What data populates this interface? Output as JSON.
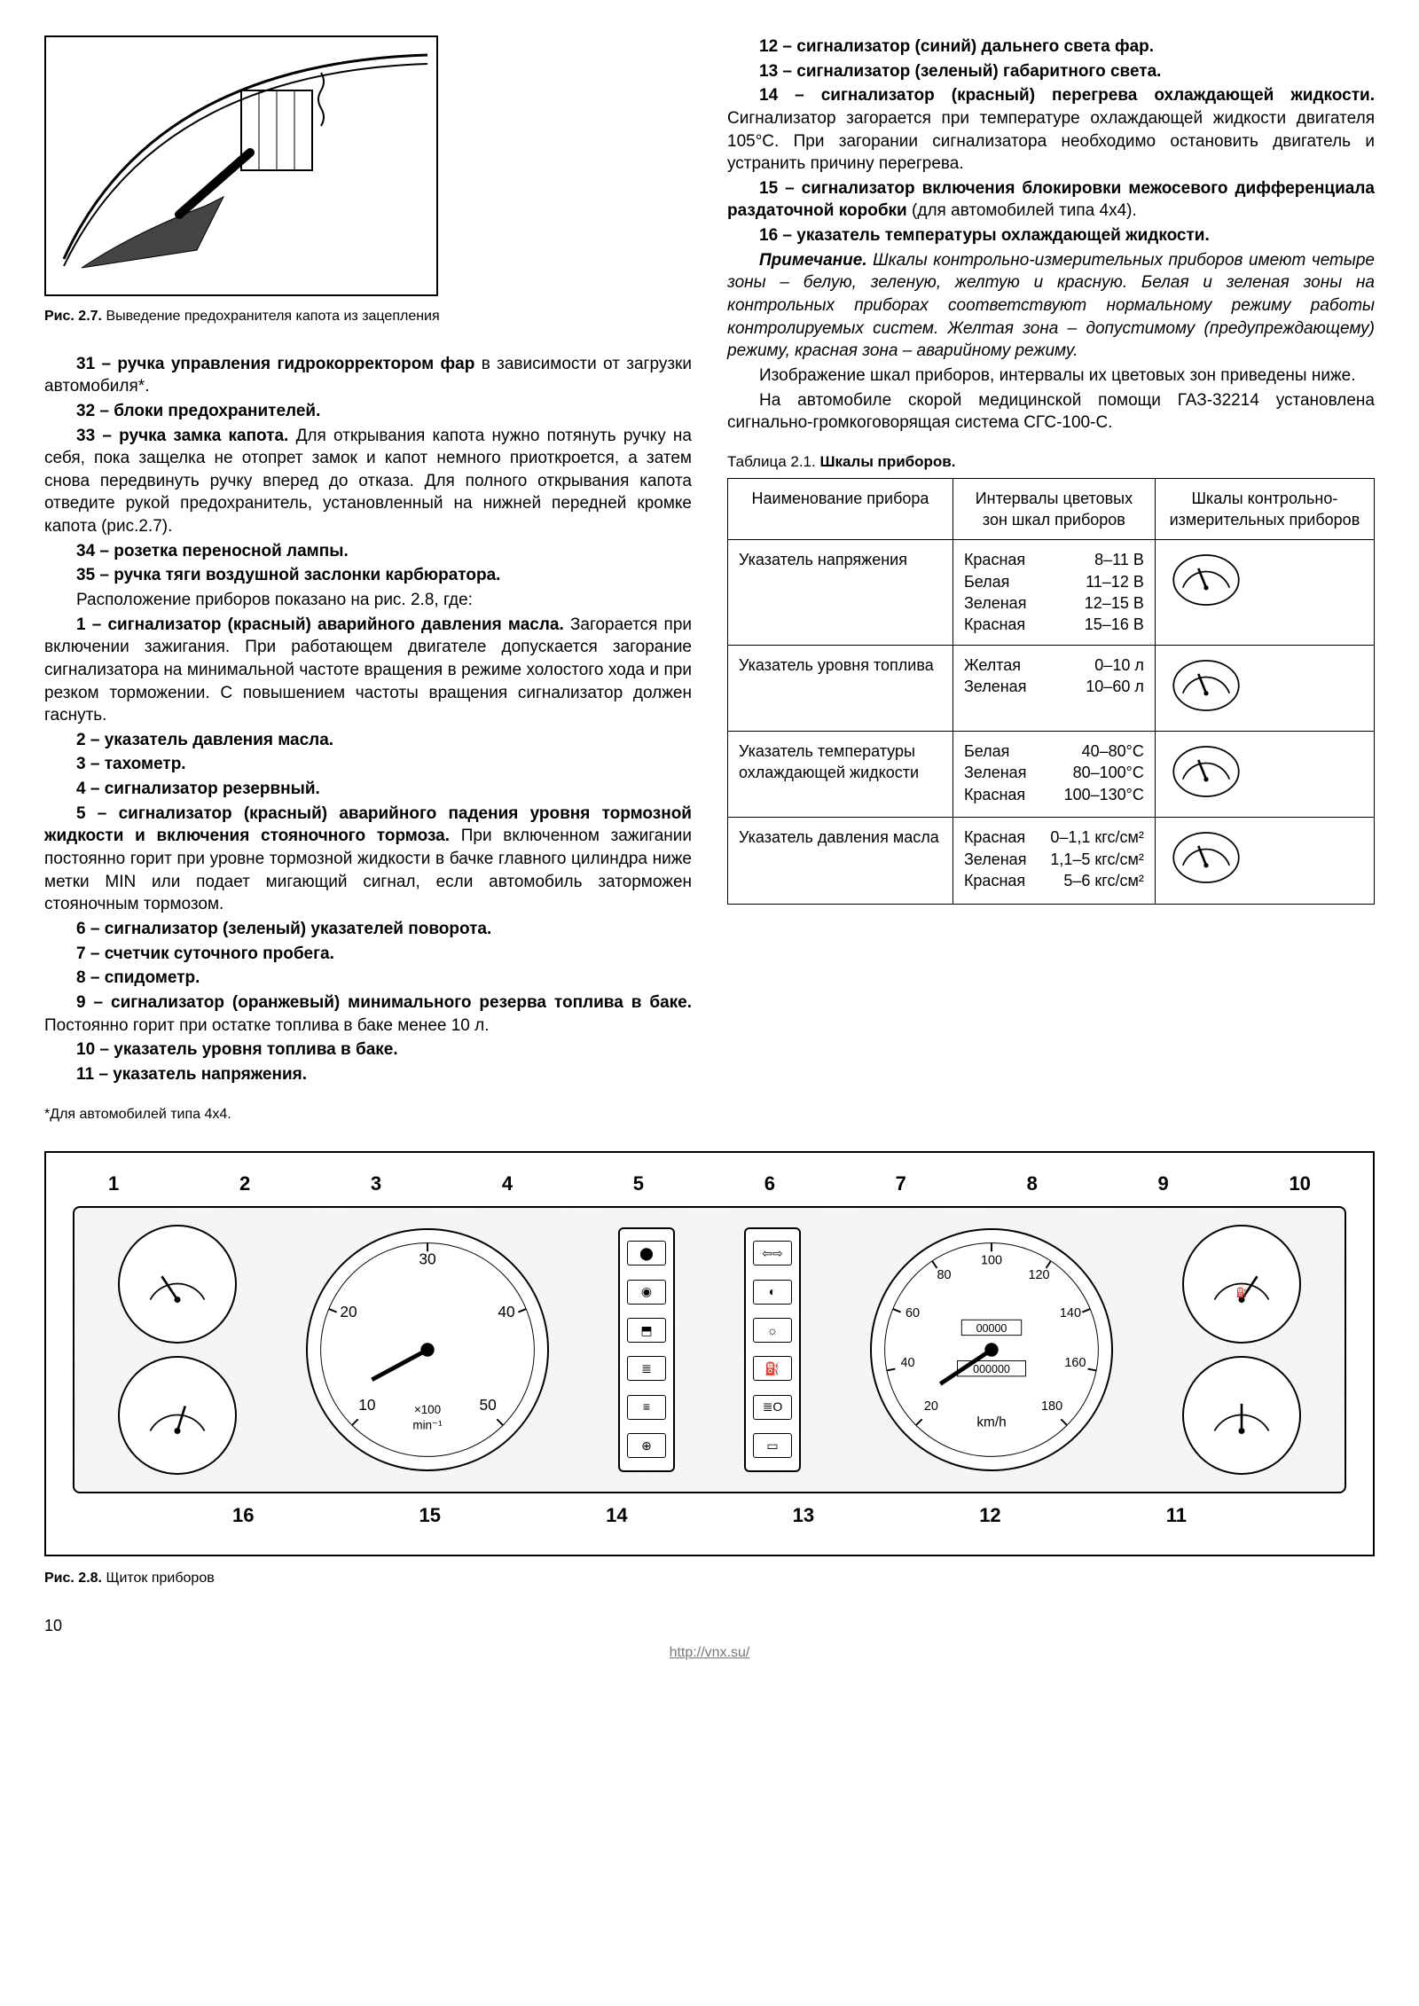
{
  "fig27": {
    "label": "Рис. 2.7.",
    "caption": "Выведение предохранителя капота из зацепления"
  },
  "left": {
    "p31a": "31 – ручка управления гидрокорректором фар",
    "p31b": " в зависимости от загрузки автомобиля*.",
    "p32": "32 – блоки предохранителей.",
    "p33a": "33 – ручка замка капота.",
    "p33b": " Для открывания капота нужно потянуть ручку на себя, пока защелка не отопрет замок и капот немного приоткроется, а затем снова передвинуть ручку вперед до отказа. Для полного открывания капота отведите рукой предохранитель, установленный на нижней передней кромке капота (рис.2.7).",
    "p34": "34 – розетка переносной лампы.",
    "p35": "35 – ручка тяги воздушной заслонки карбюратора.",
    "p35b": "Расположение приборов показано на рис. 2.8, где:",
    "p1a": "1 – сигнализатор (красный) аварийного давления масла.",
    "p1b": " Загорается при включении зажигания. При работающем двигателе допускается загорание сигнализатора на минимальной частоте вращения в режиме холостого хода и при резком торможении. С повышением частоты вращения сигнализатор должен гаснуть.",
    "p2": "2 – указатель давления масла.",
    "p3": "3 – тахометр.",
    "p4": "4 – сигнализатор резервный.",
    "p5a": "5 – сигнализатор (красный) аварийного падения уровня тормозной жидкости и включения стояночного тормоза.",
    "p5b": " При включенном зажигании постоянно горит при уровне тормозной жидкости в бачке главного цилиндра ниже метки MIN или подает мигающий сигнал, если автомобиль заторможен стояночным тормозом.",
    "p6": "6 – сигнализатор (зеленый) указателей поворота.",
    "p7": "7 – счетчик суточного пробега.",
    "p8": "8 – спидометр.",
    "p9a": "9 – сигнализатор (оранжевый) минимального резерва топлива в баке.",
    "p9b": " Постоянно горит при остатке топлива в баке менее 10 л.",
    "p10": "10 – указатель уровня топлива в баке.",
    "p11": "11 – указатель напряжения."
  },
  "right": {
    "p12": "12 – сигнализатор (синий) дальнего света фар.",
    "p13": "13 – сигнализатор (зеленый) габаритного света.",
    "p14a": "14 – сигнализатор (красный) перегрева охлаждающей жидкости.",
    "p14b": " Сигнализатор загорается при температуре охлаждающей жидкости двигателя 105°С. При загорании сигнализатора необходимо остановить двигатель и устранить причину перегрева.",
    "p15a": "15 – сигнализатор включения блокировки межосевого дифференциала раздаточной коробки",
    "p15b": " (для автомобилей типа 4х4).",
    "p16": "16 – указатель температуры охлаждающей жидкости.",
    "noteLabel": "Примечание.",
    "note": " Шкалы контрольно-измерительных приборов имеют четыре зоны – белую, зеленую, желтую и красную. Белая и зеленая зоны на контрольных приборах соответствуют нормальному режиму работы контролируемых систем. Желтая зона – допустимому (предупреждающему) режиму, красная зона – аварийному режиму.",
    "imgDesc": "Изображение шкал приборов, интервалы их цветовых зон приведены ниже.",
    "med": "На автомобиле скорой медицинской помощи ГАЗ-32214 установлена сигнально-громкоговорящая система СГС-100-С."
  },
  "table": {
    "captionLabel": "Таблица 2.1.",
    "captionText": "Шкалы приборов.",
    "h1": "Наименование прибора",
    "h2": "Интервалы цветовых зон шкал приборов",
    "h3": "Шкалы контрольно-измерительных приборов",
    "rows": [
      {
        "name": "Указатель напряжения",
        "zones": [
          {
            "c": "Красная",
            "v": "8–11 В"
          },
          {
            "c": "Белая",
            "v": "11–12 В"
          },
          {
            "c": "Зеленая",
            "v": "12–15 В"
          },
          {
            "c": "Красная",
            "v": "15–16 В"
          }
        ]
      },
      {
        "name": "Указатель уровня топлива",
        "zones": [
          {
            "c": "Желтая",
            "v": "0–10 л"
          },
          {
            "c": "Зеленая",
            "v": "10–60 л"
          }
        ]
      },
      {
        "name": "Указатель температуры охлаждающей жидкости",
        "zones": [
          {
            "c": "Белая",
            "v": "40–80°С"
          },
          {
            "c": "Зеленая",
            "v": "80–100°С"
          },
          {
            "c": "Красная",
            "v": "100–130°С"
          }
        ]
      },
      {
        "name": "Указатель давления масла",
        "zones": [
          {
            "c": "Красная",
            "v": "0–1,1 кгс/см²"
          },
          {
            "c": "Зеленая",
            "v": "1,1–5 кгс/см²"
          },
          {
            "c": "Красная",
            "v": "5–6 кгс/см²"
          }
        ]
      }
    ]
  },
  "footnote": "*Для автомобилей типа 4х4.",
  "dash": {
    "topLabels": [
      "1",
      "2",
      "3",
      "4",
      "5",
      "6",
      "7",
      "8",
      "9",
      "10"
    ],
    "botLabels": [
      "16",
      "15",
      "14",
      "13",
      "12",
      "11"
    ],
    "tach": {
      "ticks": [
        "10",
        "20",
        "30",
        "40",
        "50"
      ],
      "unit": "×100 min⁻¹"
    },
    "speedo": {
      "ticks": [
        "20",
        "40",
        "60",
        "80",
        "100",
        "120",
        "140",
        "160",
        "180"
      ],
      "unit": "km/h",
      "odo1": "00000",
      "odo2": "000000"
    }
  },
  "fig28": {
    "label": "Рис. 2.8.",
    "caption": "Щиток приборов"
  },
  "pageNum": "10",
  "url": "http://vnx.su/"
}
